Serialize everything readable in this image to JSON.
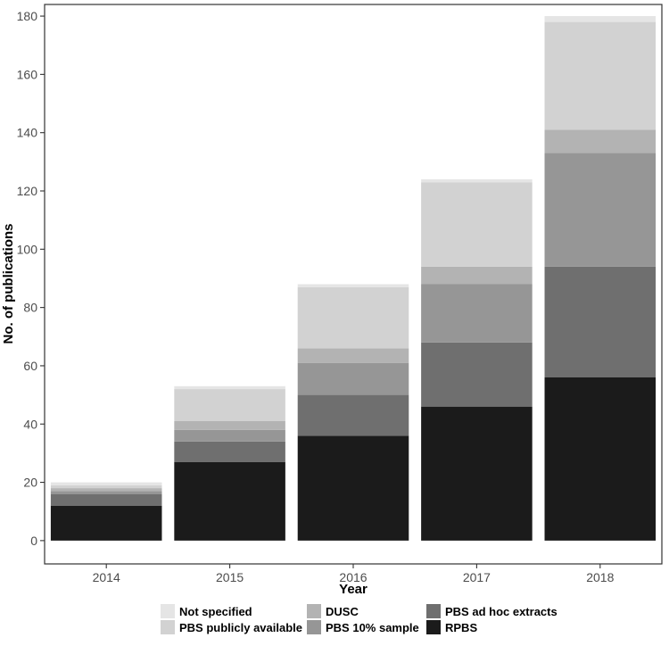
{
  "chart_data": {
    "type": "bar",
    "stacked": true,
    "title": "",
    "xlabel": "Year",
    "ylabel": "No. of publications",
    "categories": [
      "2014",
      "2015",
      "2016",
      "2017",
      "2018"
    ],
    "ylim": [
      -8,
      184
    ],
    "yticks": [
      0,
      20,
      40,
      60,
      80,
      100,
      120,
      140,
      160,
      180
    ],
    "grid": false,
    "legend_position": "bottom",
    "series": [
      {
        "name": "RPBS",
        "color": "#1b1b1b",
        "values": [
          12,
          27,
          36,
          46,
          56
        ]
      },
      {
        "name": "PBS ad hoc extracts",
        "color": "#6f6f6f",
        "values": [
          4,
          7,
          14,
          22,
          38
        ]
      },
      {
        "name": "PBS 10% sample",
        "color": "#969696",
        "values": [
          1,
          4,
          11,
          20,
          39
        ]
      },
      {
        "name": "DUSC",
        "color": "#b3b3b3",
        "values": [
          1,
          3,
          5,
          6,
          8
        ]
      },
      {
        "name": "PBS publicly available",
        "color": "#d2d2d2",
        "values": [
          1,
          11,
          21,
          29,
          37
        ]
      },
      {
        "name": "Not specified",
        "color": "#e5e5e5",
        "values": [
          1,
          1,
          1,
          1,
          2
        ]
      }
    ],
    "legend_order": [
      "Not specified",
      "PBS publicly available",
      "DUSC",
      "PBS 10% sample",
      "PBS ad hoc extracts",
      "RPBS"
    ]
  }
}
